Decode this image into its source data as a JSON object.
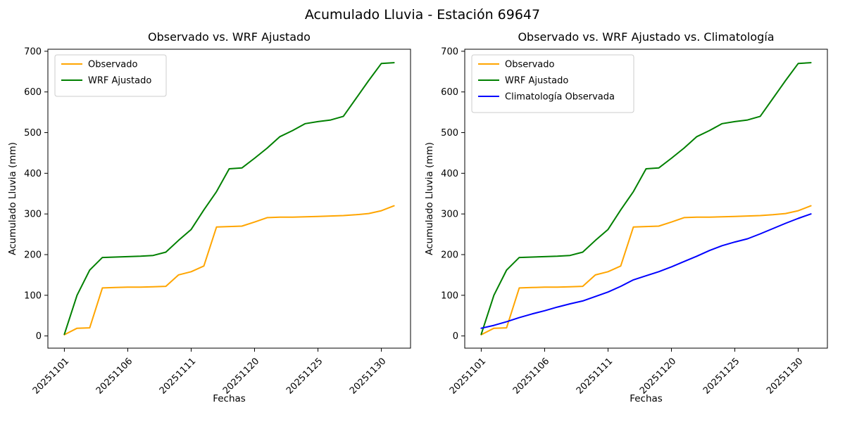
{
  "figure": {
    "title": "Acumulado Lluvia - Estación 69647",
    "background": "#ffffff"
  },
  "chart_data": [
    {
      "type": "line",
      "title": "Observado vs. WRF Ajustado",
      "xlabel": "Fechas",
      "ylabel": "Acumulado Lluvia (mm)",
      "ylim": [
        -30,
        705
      ],
      "yticks": [
        0,
        100,
        200,
        300,
        400,
        500,
        600,
        700
      ],
      "xtick_positions": [
        0,
        5,
        10,
        15,
        20,
        25
      ],
      "xtick_labels": [
        "20251101",
        "20251106",
        "20251111",
        "20251120",
        "20251125",
        "20251130"
      ],
      "xtick_rotation": 45,
      "x_margin_frac": 0.05,
      "grid": false,
      "legend_position": "upper-left",
      "series": [
        {
          "name": "Observado",
          "color": "#FFA500",
          "values": [
            3,
            19,
            20,
            118,
            119,
            120,
            120,
            121,
            122,
            150,
            158,
            172,
            268,
            269,
            270,
            280,
            291,
            292,
            292,
            293,
            294,
            295,
            296,
            298,
            301,
            308,
            320
          ]
        },
        {
          "name": "WRF Ajustado",
          "color": "#008000",
          "values": [
            4,
            100,
            162,
            193,
            194,
            195,
            196,
            198,
            206,
            235,
            262,
            310,
            355,
            411,
            413,
            437,
            462,
            490,
            505,
            522,
            527,
            531,
            540,
            584,
            628,
            670,
            672
          ]
        }
      ]
    },
    {
      "type": "line",
      "title": "Observado vs. WRF Ajustado vs. Climatología",
      "xlabel": "Fechas",
      "ylabel": "Acumulado Lluvia (mm)",
      "ylim": [
        -30,
        705
      ],
      "yticks": [
        0,
        100,
        200,
        300,
        400,
        500,
        600,
        700
      ],
      "xtick_positions": [
        0,
        5,
        10,
        15,
        20,
        25
      ],
      "xtick_labels": [
        "20251101",
        "20251106",
        "20251111",
        "20251120",
        "20251125",
        "20251130"
      ],
      "xtick_rotation": 45,
      "x_margin_frac": 0.05,
      "grid": false,
      "legend_position": "upper-left",
      "series": [
        {
          "name": "Observado",
          "color": "#FFA500",
          "values": [
            3,
            19,
            20,
            118,
            119,
            120,
            120,
            121,
            122,
            150,
            158,
            172,
            268,
            269,
            270,
            280,
            291,
            292,
            292,
            293,
            294,
            295,
            296,
            298,
            301,
            308,
            320
          ]
        },
        {
          "name": "WRF Ajustado",
          "color": "#008000",
          "values": [
            4,
            100,
            162,
            193,
            194,
            195,
            196,
            198,
            206,
            235,
            262,
            310,
            355,
            411,
            413,
            437,
            462,
            490,
            505,
            522,
            527,
            531,
            540,
            584,
            628,
            670,
            672
          ]
        },
        {
          "name": "Climatología Observada",
          "color": "#0000FF",
          "values": [
            19,
            26,
            35,
            45,
            54,
            62,
            71,
            79,
            86,
            97,
            108,
            122,
            138,
            148,
            158,
            170,
            183,
            196,
            210,
            222,
            231,
            239,
            251,
            264,
            277,
            289,
            300
          ]
        }
      ]
    }
  ]
}
